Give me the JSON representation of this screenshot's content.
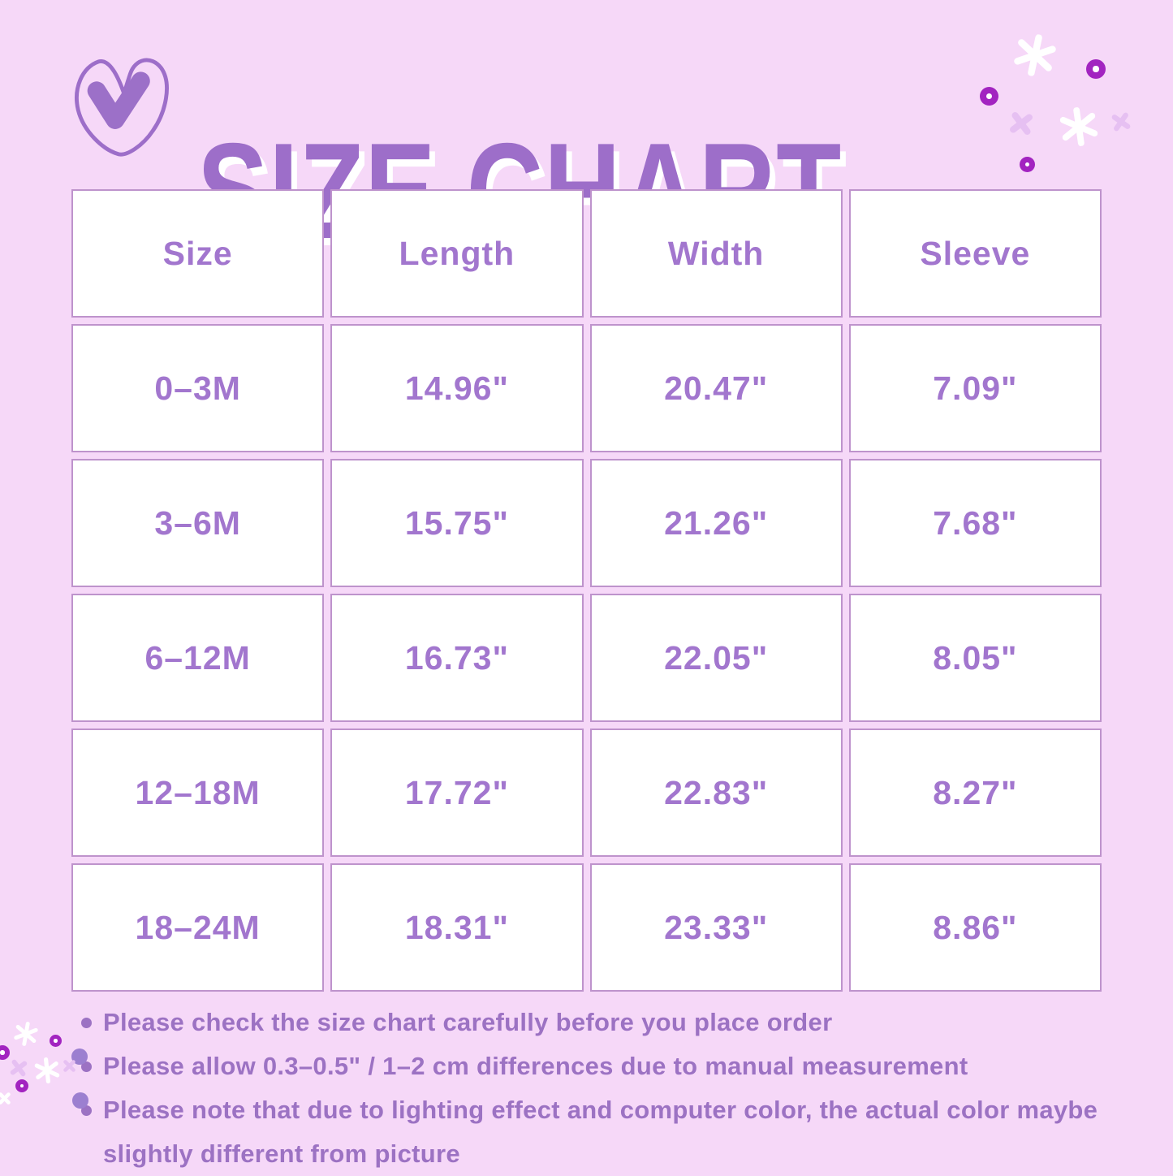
{
  "header": {
    "title": "SIZE CHART"
  },
  "chart_data": {
    "type": "table",
    "title": "SIZE CHART",
    "columns": [
      "Size",
      "Length",
      "Width",
      "Sleeve"
    ],
    "rows": [
      [
        "0–3M",
        "14.96\"",
        "20.47\"",
        "7.09\""
      ],
      [
        "3–6M",
        "15.75\"",
        "21.26\"",
        "7.68\""
      ],
      [
        "6–12M",
        "16.73\"",
        "22.05\"",
        "8.05\""
      ],
      [
        "12–18M",
        "17.72\"",
        "22.83\"",
        "8.27\""
      ],
      [
        "18–24M",
        "18.31\"",
        "23.33\"",
        "8.86\""
      ]
    ]
  },
  "notes": {
    "items": [
      "Please check the size chart carefully before you place order",
      "Please allow 0.3–0.5\" / 1–2 cm differences due to manual measurement",
      "Please note that due to lighting effect and computer color, the actual color maybe slightly different from picture"
    ]
  },
  "icons": {
    "heart": "heart-doodle-icon",
    "sparkle": "sparkle-icon",
    "dot": "dot-icon",
    "cross": "cross-icon",
    "circle": "circle-icon"
  },
  "colors": {
    "background": "#F6D8F8",
    "title_purple": "#9D6EC9",
    "cell_text": "#A276CE",
    "cell_border": "#BE93CC",
    "note_text": "#9C72C3",
    "dot_dark": "#A224C0",
    "dot_medium": "#9C7FD0",
    "cross_lavender": "#E6C0F2",
    "sparkle_white": "#FFFFFF"
  }
}
